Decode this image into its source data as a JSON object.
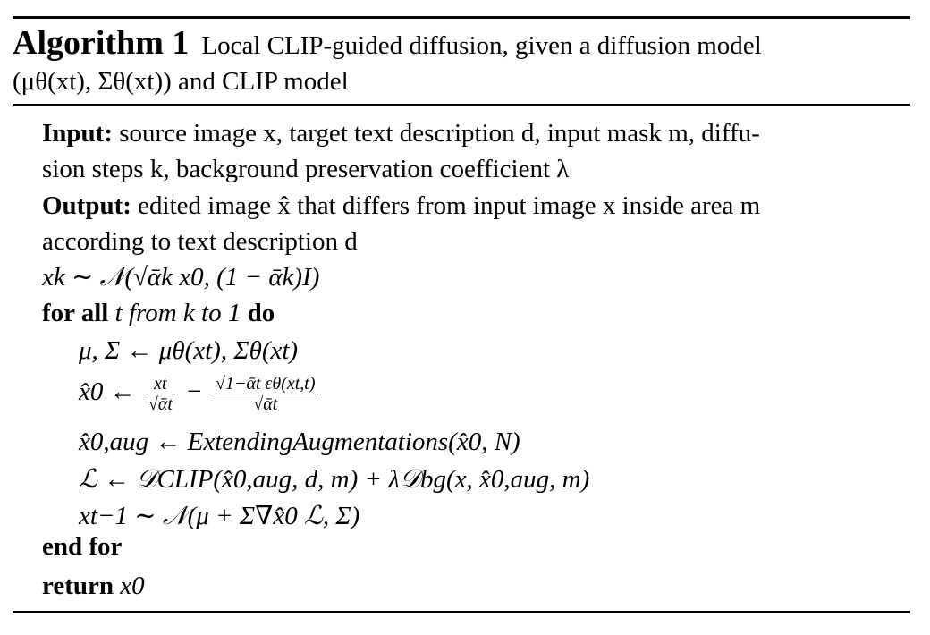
{
  "caption": {
    "label": "Algorithm 1",
    "line1": "Local CLIP-guided diffusion, given a diffusion model",
    "line2": "(μθ(xt), Σθ(xt)) and CLIP model"
  },
  "input": {
    "label": "Input:",
    "text1": "source image x, target text description d, input mask m, diffu-",
    "text2": "sion steps k, background preservation coefficient λ"
  },
  "output": {
    "label": "Output:",
    "text1": "edited image x̂ that differs from input image x inside area m",
    "text2": "according to text description d"
  },
  "steps": {
    "init": "xk ∼ 𝒩(√ᾱk x0, (1 − ᾱk)I)",
    "loop_kw_for": "for all",
    "loop_mid": "t from k to 1",
    "loop_kw_do": "do",
    "s1": "μ, Σ ← μθ(xt), Σθ(xt)",
    "s2_lhs": "x̂0 ←",
    "s2_frac1_num": "xt",
    "s2_frac1_den": "√ᾱt",
    "s2_minus": "−",
    "s2_frac2_num": "√1−ᾱt εθ(xt,t)",
    "s2_frac2_den": "√ᾱt",
    "s3": "x̂0,aug ← ExtendingAugmentations(x̂0, N)",
    "s4": "ℒ ← 𝒟CLIP(x̂0,aug, d, m) + λ𝒟bg(x, x̂0,aug, m)",
    "s5": "xt−1 ∼ 𝒩(μ + Σ∇x̂0 ℒ, Σ)",
    "end_for": "end for",
    "return_kw": "return",
    "return_val": "x0"
  }
}
